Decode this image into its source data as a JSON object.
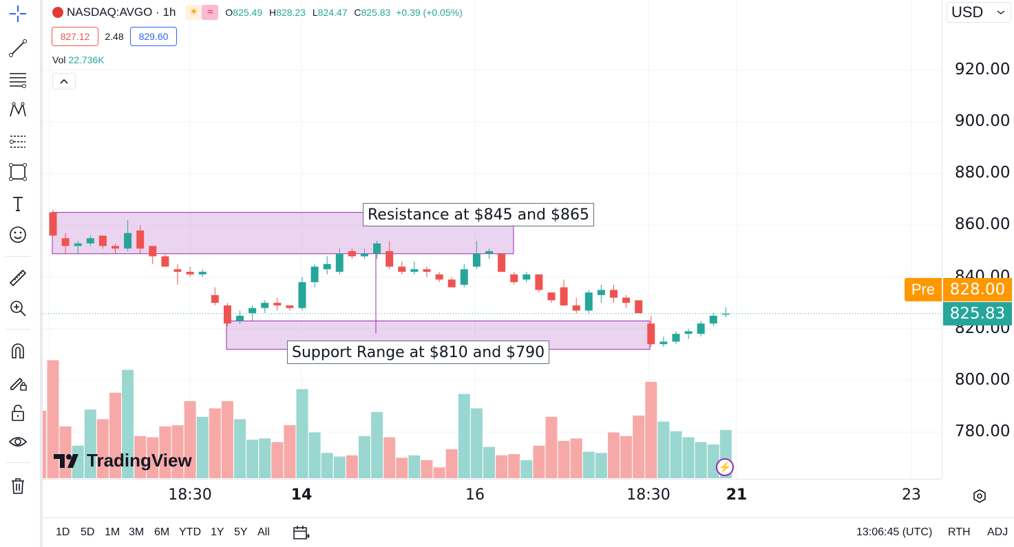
{
  "header": {
    "symbol": "NASDAQ:AVGO · 1h",
    "ohlc": {
      "o_label": "O",
      "o": "825.49",
      "h_label": "H",
      "h": "828.23",
      "l_label": "L",
      "l": "824.47",
      "c_label": "C",
      "c": "825.83",
      "change": "+0.39 (+0.05%)"
    },
    "bid": "827.12",
    "spread": "2.48",
    "ask": "829.60",
    "vol_label": "Vol",
    "vol_value": "22.736K"
  },
  "currency": "USD",
  "pre_label": "Pre",
  "pre_price": "828.00",
  "last_price": "825.83",
  "annotations": {
    "resistance": "Resistance at $845 and $865",
    "support": "Support Range at $810 and $790"
  },
  "watermark": "TradingView",
  "bottom": {
    "ranges": [
      "1D",
      "5D",
      "1M",
      "3M",
      "6M",
      "YTD",
      "1Y",
      "5Y",
      "All"
    ],
    "clock": "13:06:45 (UTC)",
    "rth": "RTH",
    "adj": "ADJ"
  },
  "colors": {
    "up": "#26a69a",
    "down": "#ef5350",
    "zone": "#e1bee7",
    "zone_border": "#9c27b0",
    "pre": "#ff9800"
  },
  "chart_data": {
    "type": "candlestick",
    "y_ticks": [
      "920.00",
      "900.00",
      "880.00",
      "860.00",
      "840.00",
      "820.00",
      "800.00",
      "780.00"
    ],
    "x_ticks": [
      {
        "label": "18:30",
        "bold": false
      },
      {
        "label": "14",
        "bold": true
      },
      {
        "label": "16",
        "bold": false
      },
      {
        "label": "18:30",
        "bold": false
      },
      {
        "label": "21",
        "bold": true
      },
      {
        "label": "23",
        "bold": false
      }
    ],
    "ylim": [
      765,
      940
    ],
    "zones": [
      {
        "name": "resistance",
        "from": 849,
        "to": 865
      },
      {
        "name": "support",
        "from": 812,
        "to": 823
      }
    ],
    "candles": [
      {
        "o": 865,
        "h": 866,
        "l": 856,
        "c": 856
      },
      {
        "o": 855,
        "h": 857,
        "l": 849,
        "c": 852
      },
      {
        "o": 852,
        "h": 854,
        "l": 849,
        "c": 853
      },
      {
        "o": 853,
        "h": 856,
        "l": 852,
        "c": 855
      },
      {
        "o": 856,
        "h": 856,
        "l": 851,
        "c": 852
      },
      {
        "o": 852,
        "h": 853,
        "l": 849,
        "c": 851
      },
      {
        "o": 851,
        "h": 862,
        "l": 850,
        "c": 857
      },
      {
        "o": 858,
        "h": 860,
        "l": 849,
        "c": 851
      },
      {
        "o": 852,
        "h": 852,
        "l": 845,
        "c": 848
      },
      {
        "o": 848,
        "h": 849,
        "l": 844,
        "c": 844
      },
      {
        "o": 843,
        "h": 845,
        "l": 837,
        "c": 842
      },
      {
        "o": 842,
        "h": 844,
        "l": 840,
        "c": 841
      },
      {
        "o": 841,
        "h": 843,
        "l": 840,
        "c": 842
      },
      {
        "o": 833,
        "h": 836,
        "l": 829,
        "c": 830
      },
      {
        "o": 829,
        "h": 830,
        "l": 821,
        "c": 822
      },
      {
        "o": 823,
        "h": 827,
        "l": 822,
        "c": 825
      },
      {
        "o": 826,
        "h": 829,
        "l": 823,
        "c": 828
      },
      {
        "o": 828,
        "h": 831,
        "l": 826,
        "c": 830
      },
      {
        "o": 830,
        "h": 832,
        "l": 827,
        "c": 829
      },
      {
        "o": 829,
        "h": 829,
        "l": 827,
        "c": 828
      },
      {
        "o": 828,
        "h": 840,
        "l": 827,
        "c": 838
      },
      {
        "o": 838,
        "h": 845,
        "l": 836,
        "c": 844
      },
      {
        "o": 843,
        "h": 848,
        "l": 841,
        "c": 845
      },
      {
        "o": 842,
        "h": 851,
        "l": 841,
        "c": 849
      },
      {
        "o": 850,
        "h": 851,
        "l": 847,
        "c": 848
      },
      {
        "o": 848,
        "h": 851,
        "l": 847,
        "c": 849
      },
      {
        "o": 849,
        "h": 854,
        "l": 847,
        "c": 853
      },
      {
        "o": 850,
        "h": 854,
        "l": 843,
        "c": 844
      },
      {
        "o": 844,
        "h": 846,
        "l": 841,
        "c": 842
      },
      {
        "o": 842,
        "h": 846,
        "l": 841,
        "c": 843
      },
      {
        "o": 843,
        "h": 844,
        "l": 840,
        "c": 842
      },
      {
        "o": 841,
        "h": 842,
        "l": 838,
        "c": 839
      },
      {
        "o": 839,
        "h": 840,
        "l": 836,
        "c": 836
      },
      {
        "o": 837,
        "h": 845,
        "l": 836,
        "c": 843
      },
      {
        "o": 844,
        "h": 854,
        "l": 843,
        "c": 849
      },
      {
        "o": 849,
        "h": 851,
        "l": 847,
        "c": 850
      },
      {
        "o": 849,
        "h": 849,
        "l": 842,
        "c": 842
      },
      {
        "o": 841,
        "h": 842,
        "l": 837,
        "c": 838
      },
      {
        "o": 839,
        "h": 842,
        "l": 838,
        "c": 841
      },
      {
        "o": 841,
        "h": 841,
        "l": 834,
        "c": 835
      },
      {
        "o": 834,
        "h": 834,
        "l": 830,
        "c": 831
      },
      {
        "o": 836,
        "h": 839,
        "l": 829,
        "c": 829
      },
      {
        "o": 829,
        "h": 832,
        "l": 826,
        "c": 827
      },
      {
        "o": 827,
        "h": 835,
        "l": 826,
        "c": 834
      },
      {
        "o": 833,
        "h": 837,
        "l": 830,
        "c": 835
      },
      {
        "o": 835,
        "h": 837,
        "l": 830,
        "c": 832
      },
      {
        "o": 832,
        "h": 833,
        "l": 828,
        "c": 830
      },
      {
        "o": 831,
        "h": 831,
        "l": 826,
        "c": 826
      },
      {
        "o": 822,
        "h": 825,
        "l": 813,
        "c": 814
      },
      {
        "o": 814,
        "h": 817,
        "l": 813,
        "c": 815
      },
      {
        "o": 815,
        "h": 819,
        "l": 814,
        "c": 818
      },
      {
        "o": 818,
        "h": 820,
        "l": 816,
        "c": 819
      },
      {
        "o": 818,
        "h": 823,
        "l": 817,
        "c": 822
      },
      {
        "o": 822,
        "h": 826,
        "l": 821,
        "c": 825
      },
      {
        "o": 825.49,
        "h": 828.23,
        "l": 824.47,
        "c": 825.83
      }
    ],
    "volume_relative": [
      0.98,
      0.43,
      0.27,
      0.57,
      0.49,
      0.71,
      0.9,
      0.35,
      0.34,
      0.43,
      0.44,
      0.64,
      0.51,
      0.58,
      0.64,
      0.49,
      0.32,
      0.33,
      0.3,
      0.44,
      0.74,
      0.38,
      0.21,
      0.18,
      0.19,
      0.35,
      0.55,
      0.34,
      0.17,
      0.19,
      0.15,
      0.09,
      0.24,
      0.7,
      0.58,
      0.26,
      0.19,
      0.2,
      0.15,
      0.27,
      0.51,
      0.31,
      0.33,
      0.22,
      0.21,
      0.38,
      0.35,
      0.52,
      0.8,
      0.47,
      0.39,
      0.34,
      0.3,
      0.28,
      0.4
    ]
  }
}
